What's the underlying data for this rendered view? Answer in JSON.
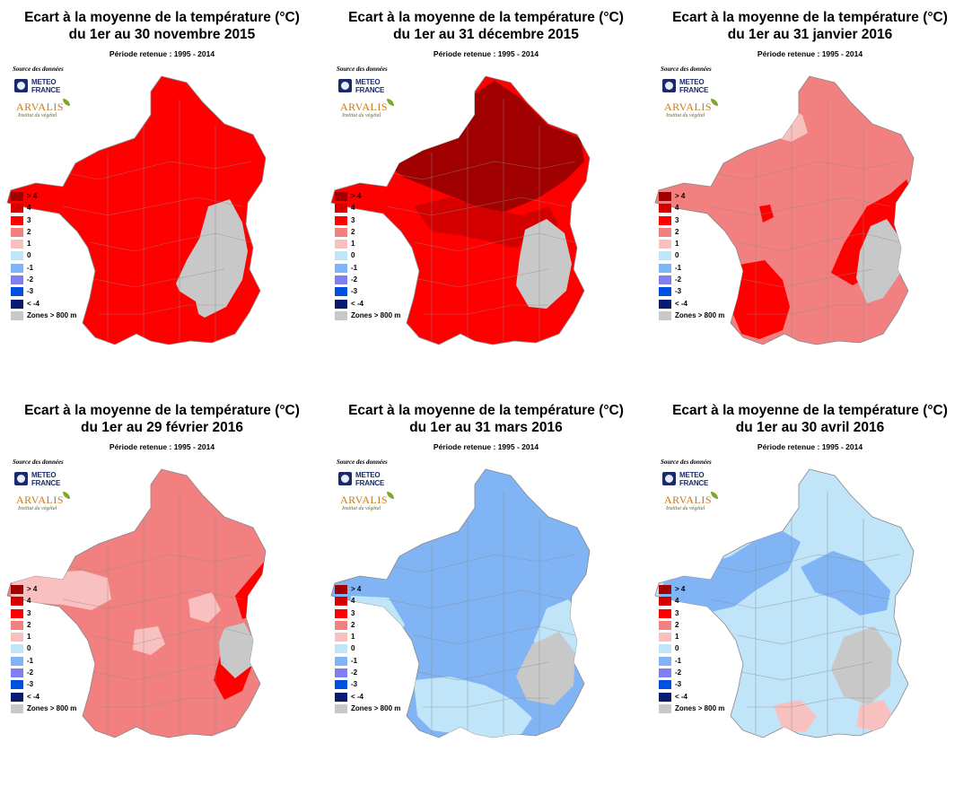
{
  "source_label": "Source des données",
  "period_label": "Période retenue :  1995 - 2014",
  "logos": {
    "meteo_france": [
      "METEO",
      "FRANCE"
    ],
    "arvalis": "ARVALIS",
    "arvalis_sub": "Institut du végétal"
  },
  "legend": [
    {
      "label": "> 4",
      "color": "#a00000"
    },
    {
      "label": "4",
      "color": "#d40000"
    },
    {
      "label": "3",
      "color": "#ff0000"
    },
    {
      "label": "2",
      "color": "#f28080"
    },
    {
      "label": "1",
      "color": "#f9c0c0"
    },
    {
      "label": "0",
      "color": "#c0e4f8"
    },
    {
      "label": "-1",
      "color": "#80b4f4"
    },
    {
      "label": "-2",
      "color": "#7f7fef"
    },
    {
      "label": "-3",
      "color": "#0050e0"
    },
    {
      "label": "< -4",
      "color": "#0a1a6e"
    },
    {
      "label": "Zones > 800 m",
      "color": "#c8c8c8"
    }
  ],
  "maps": [
    {
      "title_line1": "Ecart à la moyenne de la température (°C)",
      "title_line2": "du 1er au 30 novembre 2015",
      "base_class": "3",
      "patches": [
        {
          "class": "high_ground"
        },
        {
          "class": "3"
        }
      ]
    },
    {
      "title_line1": "Ecart à la moyenne de la température (°C)",
      "title_line2": "du 1er au 31 décembre 2015",
      "base_class": "3",
      "patches": [
        {
          "class": "> 4"
        },
        {
          "class": "4"
        },
        {
          "class": "high_ground"
        }
      ]
    },
    {
      "title_line1": "Ecart à la moyenne de la température (°C)",
      "title_line2": "du 1er au 31 janvier 2016",
      "base_class": "2",
      "patches": [
        {
          "class": "1"
        },
        {
          "class": "3"
        },
        {
          "class": "3"
        },
        {
          "class": "3"
        },
        {
          "class": "high_ground"
        }
      ]
    },
    {
      "title_line1": "Ecart à la moyenne de la température (°C)",
      "title_line2": "du 1er au 29 février 2016",
      "base_class": "2",
      "patches": [
        {
          "class": "1"
        },
        {
          "class": "1"
        },
        {
          "class": "1"
        },
        {
          "class": "3"
        },
        {
          "class": "3"
        },
        {
          "class": "high_ground"
        }
      ]
    },
    {
      "title_line1": "Ecart à la moyenne de la température (°C)",
      "title_line2": "du 1er au 31 mars 2016",
      "base_class": "-1",
      "patches": [
        {
          "class": "0"
        },
        {
          "class": "0"
        },
        {
          "class": "0"
        },
        {
          "class": "high_ground"
        }
      ]
    },
    {
      "title_line1": "Ecart à la moyenne de la température (°C)",
      "title_line2": "du 1er au 30 avril 2016",
      "base_class": "0",
      "patches": [
        {
          "class": "-1"
        },
        {
          "class": "-1"
        },
        {
          "class": "1"
        },
        {
          "class": "1"
        },
        {
          "class": "high_ground"
        }
      ]
    }
  ]
}
